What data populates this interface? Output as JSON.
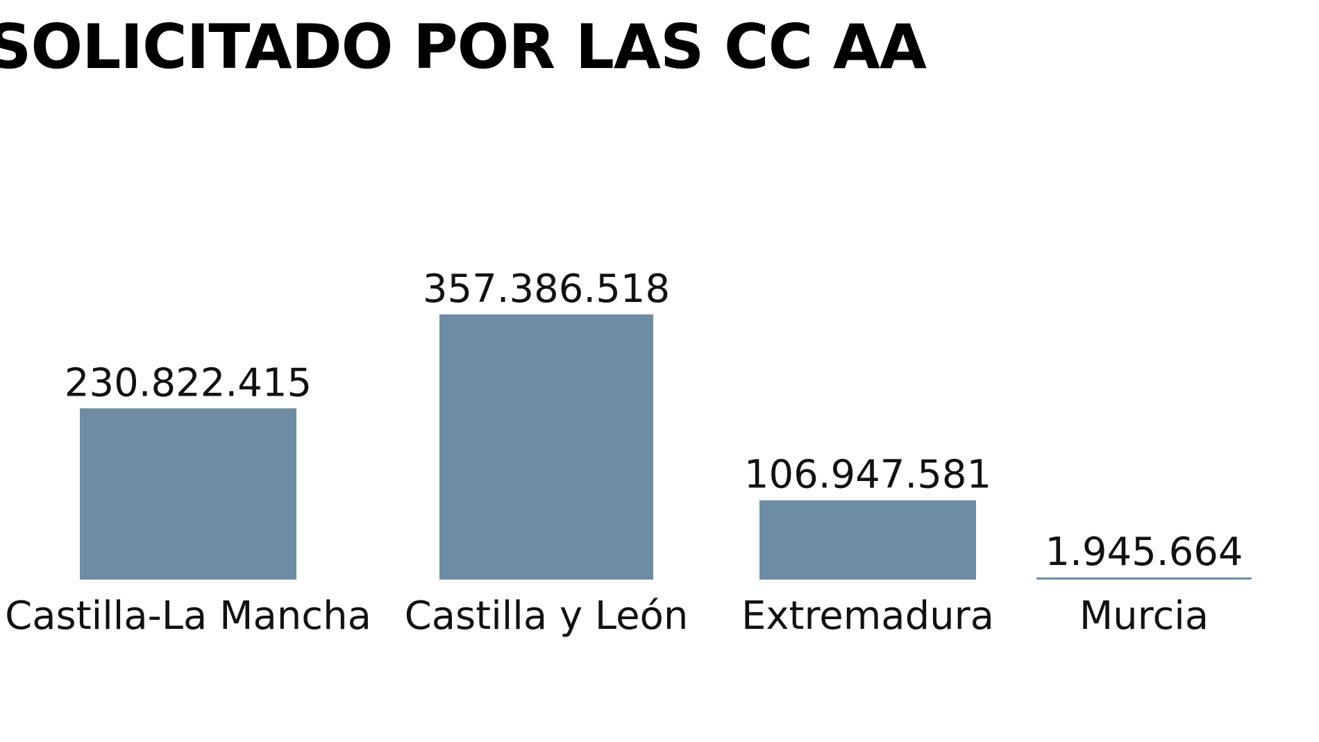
{
  "chart_data": {
    "type": "bar",
    "title": "SOLICITADO POR LAS CC AA",
    "categories": [
      "Castilla-La Mancha",
      "Castilla y León",
      "Extremadura",
      "Murcia"
    ],
    "values": [
      230822415,
      357386518,
      106947581,
      1945664
    ],
    "value_labels": [
      "230.822.415",
      "357.386.518",
      "106.947.581",
      "1.945.664"
    ],
    "xlabel": "",
    "ylabel": "",
    "ylim": [
      0,
      357386518
    ],
    "grid": false,
    "legend": "none",
    "colors": {
      "bar": "#6f8ca5",
      "text": "#111111"
    }
  }
}
